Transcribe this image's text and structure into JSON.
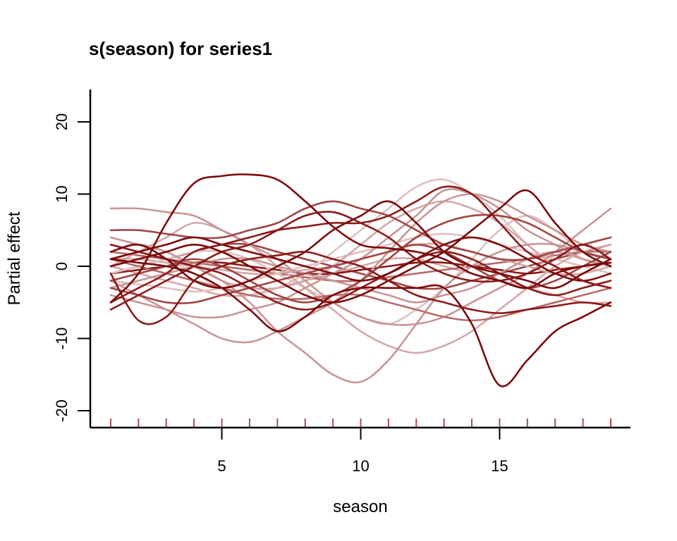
{
  "chart_data": {
    "type": "line",
    "title": "s(season) for series1",
    "xlabel": "season",
    "ylabel": "Partial effect",
    "xlim": [
      1,
      19
    ],
    "ylim": [
      -22,
      24
    ],
    "x_ticks": [
      5,
      10,
      15
    ],
    "y_ticks": [
      20,
      10,
      0,
      -10,
      -20
    ],
    "rug_x": [
      1,
      2,
      3,
      4,
      5,
      6,
      7,
      8,
      9,
      10,
      11,
      12,
      13,
      14,
      15,
      16,
      17,
      18,
      19
    ],
    "x": [
      1,
      2,
      3,
      4,
      5,
      6,
      7,
      8,
      9,
      10,
      11,
      12,
      13,
      14,
      15,
      16,
      17,
      18,
      19
    ],
    "colors": {
      "dark": "#7a0a0a",
      "mid": "#a04545",
      "light": "#c89595",
      "pale": "#e0c0c0",
      "rug": "#a85050"
    },
    "series": [
      {
        "color": "#7a0a0a",
        "values": [
          -5,
          -1,
          6,
          11.5,
          12.5,
          12.7,
          12,
          9,
          5.5,
          3,
          2.5,
          2,
          1,
          -1,
          -2,
          -3,
          -1,
          0,
          0.5
        ]
      },
      {
        "color": "#7a0a0a",
        "values": [
          1,
          0.5,
          0,
          -1,
          -3,
          -6,
          -9,
          -7,
          -4,
          -3,
          -3,
          -3,
          -3,
          -8,
          -16.5,
          -13,
          -9,
          -7,
          -5
        ]
      },
      {
        "color": "#8b1a1a",
        "values": [
          -1,
          -7.5,
          -7,
          -2,
          0,
          1,
          1.5,
          2,
          1,
          0,
          -2,
          -4,
          -5,
          -6,
          -6.5,
          -6,
          -5.5,
          -5,
          -5.5
        ]
      },
      {
        "color": "#7a0a0a",
        "values": [
          2,
          3,
          1,
          -2,
          -3,
          -2,
          0,
          2,
          5,
          7,
          9,
          6,
          2,
          0,
          -1,
          -2,
          -3,
          -1,
          1
        ]
      },
      {
        "color": "#8b1a1a",
        "values": [
          -5,
          -3,
          -1,
          2,
          3,
          4,
          5,
          5.5,
          6,
          6,
          7,
          9,
          11,
          10,
          6,
          2,
          0,
          -2,
          -3
        ]
      },
      {
        "color": "#7a0a0a",
        "values": [
          0,
          1,
          2,
          3,
          2,
          0,
          -2,
          -4,
          -5,
          -4,
          -2,
          0,
          2,
          5,
          8,
          10.5,
          6,
          2,
          0
        ]
      },
      {
        "color": "#8b1a1a",
        "values": [
          -6,
          -4,
          -2,
          0,
          2,
          3,
          5,
          7,
          7.5,
          6,
          4,
          1,
          -1,
          -2,
          -2,
          -1,
          1,
          3,
          1
        ]
      },
      {
        "color": "#7a0a0a",
        "values": [
          1,
          2,
          3,
          4,
          3,
          2,
          1,
          0,
          -1,
          -2,
          -1,
          1,
          3,
          4,
          3,
          1,
          -1,
          -2,
          -1
        ]
      },
      {
        "color": "#a04545",
        "values": [
          5,
          5,
          4.5,
          4,
          4,
          5,
          6,
          8,
          9,
          8,
          7,
          5,
          3,
          2,
          1,
          1,
          2,
          3,
          4
        ]
      },
      {
        "color": "#a04545",
        "values": [
          -2,
          -1,
          0,
          1,
          0,
          -2,
          -4,
          -5,
          -4,
          -2,
          1,
          4,
          6,
          7,
          7,
          6,
          4,
          2,
          1
        ]
      },
      {
        "color": "#8b1a1a",
        "values": [
          3,
          2,
          1,
          0,
          -1,
          -3,
          -5,
          -6,
          -5,
          -3,
          -1,
          1,
          2,
          1,
          -1,
          -3,
          -4,
          -3,
          -2
        ]
      },
      {
        "color": "#a04545",
        "values": [
          -3,
          -4,
          -5,
          -5,
          -4,
          -3,
          -2,
          -1,
          0,
          1,
          2,
          3,
          2,
          0,
          -2,
          -3,
          -2,
          0,
          2
        ]
      },
      {
        "color": "#b86a6a",
        "values": [
          1,
          0,
          -1,
          -2,
          -3,
          -4,
          -4.5,
          -4.5,
          -4,
          -4,
          -5,
          -6,
          -7,
          -7.5,
          -7,
          -6,
          -5,
          -4,
          -3
        ]
      },
      {
        "color": "#c89595",
        "values": [
          8,
          8,
          7.5,
          7,
          5,
          3,
          1,
          -2,
          -5,
          -7,
          -8,
          -8,
          -7,
          -5,
          -3,
          -1,
          2,
          5,
          8
        ]
      },
      {
        "color": "#c89595",
        "values": [
          -4,
          -5,
          -6,
          -7,
          -7,
          -6,
          -5,
          -3,
          -1,
          1,
          4,
          7,
          10.5,
          10,
          8,
          5,
          3,
          1,
          0
        ]
      },
      {
        "color": "#c89595",
        "values": [
          4,
          3,
          2,
          0,
          -2,
          -5,
          -9,
          -12,
          -15,
          -16,
          -13,
          -8,
          -3,
          0,
          2,
          3,
          3,
          2,
          1
        ]
      },
      {
        "color": "#c89595",
        "values": [
          -2,
          -4,
          -6,
          -8,
          -10,
          -10.5,
          -9,
          -7,
          -5,
          -2,
          2,
          6,
          9,
          10,
          9,
          7,
          5,
          3,
          2
        ]
      },
      {
        "color": "#d4a8a8",
        "values": [
          0,
          2,
          4,
          6,
          5,
          3,
          0,
          -3,
          -6,
          -9,
          -11,
          -12,
          -11,
          -9,
          -6,
          -3,
          0,
          2,
          3
        ]
      },
      {
        "color": "#d4a8a8",
        "values": [
          2,
          3,
          2,
          0,
          -2,
          -3,
          -3,
          -2,
          0,
          3,
          6,
          8,
          9,
          8,
          6,
          3,
          0,
          -2,
          -3
        ]
      },
      {
        "color": "#c89595",
        "values": [
          -3,
          -2,
          -1,
          0,
          1,
          1,
          0,
          -1,
          -2,
          -3,
          -4,
          -5,
          -4,
          -3,
          -1,
          1,
          2,
          1,
          0
        ]
      },
      {
        "color": "#e0c0c0",
        "values": [
          3,
          2,
          1,
          -1,
          -3,
          -4,
          -3,
          -1,
          2,
          5,
          8,
          11,
          12,
          10,
          7,
          3,
          0,
          -2,
          -3
        ]
      },
      {
        "color": "#e0c0c0",
        "values": [
          -1,
          0,
          1,
          2,
          2,
          1,
          -1,
          -3,
          -5,
          -7,
          -8,
          -6,
          -3,
          1,
          5,
          7,
          5,
          2,
          1
        ]
      },
      {
        "color": "#d4a8a8",
        "values": [
          1,
          1,
          0.5,
          0,
          -0.5,
          -1,
          -1,
          -0.5,
          0,
          1,
          2,
          3,
          3,
          2,
          1,
          0,
          -1,
          -1,
          0
        ]
      },
      {
        "color": "#e0c0c0",
        "values": [
          -2,
          -2.5,
          -3,
          -3.5,
          -3,
          -2,
          -1,
          0,
          1,
          2,
          3,
          4,
          4.5,
          4,
          3,
          2,
          1,
          0,
          -1
        ]
      },
      {
        "color": "#b86a6a",
        "values": [
          2,
          1.5,
          1,
          0.5,
          0,
          -0.5,
          -1,
          -1.5,
          -2,
          -2,
          -1.5,
          -1,
          -0.5,
          0,
          0.5,
          1,
          1.5,
          2,
          2
        ]
      },
      {
        "color": "#8b1a1a",
        "values": [
          -1,
          -0.5,
          0,
          0.5,
          0.5,
          0,
          -0.5,
          -1,
          -1,
          -0.5,
          0,
          0.5,
          0.5,
          0,
          -0.5,
          -1,
          -0.5,
          0,
          0.5
        ]
      },
      {
        "color": "#d4a8a8",
        "values": [
          0,
          -1,
          -2,
          -3,
          -4,
          -4,
          -3,
          -2,
          -1,
          0,
          1,
          1,
          0,
          -1,
          -2,
          -3,
          -4,
          -5,
          -5
        ]
      },
      {
        "color": "#a04545",
        "values": [
          -1,
          0,
          1,
          2,
          3,
          3,
          2,
          1,
          0,
          -1,
          -2,
          -3,
          -3,
          -2,
          -1,
          0,
          1,
          2,
          3
        ]
      }
    ]
  }
}
